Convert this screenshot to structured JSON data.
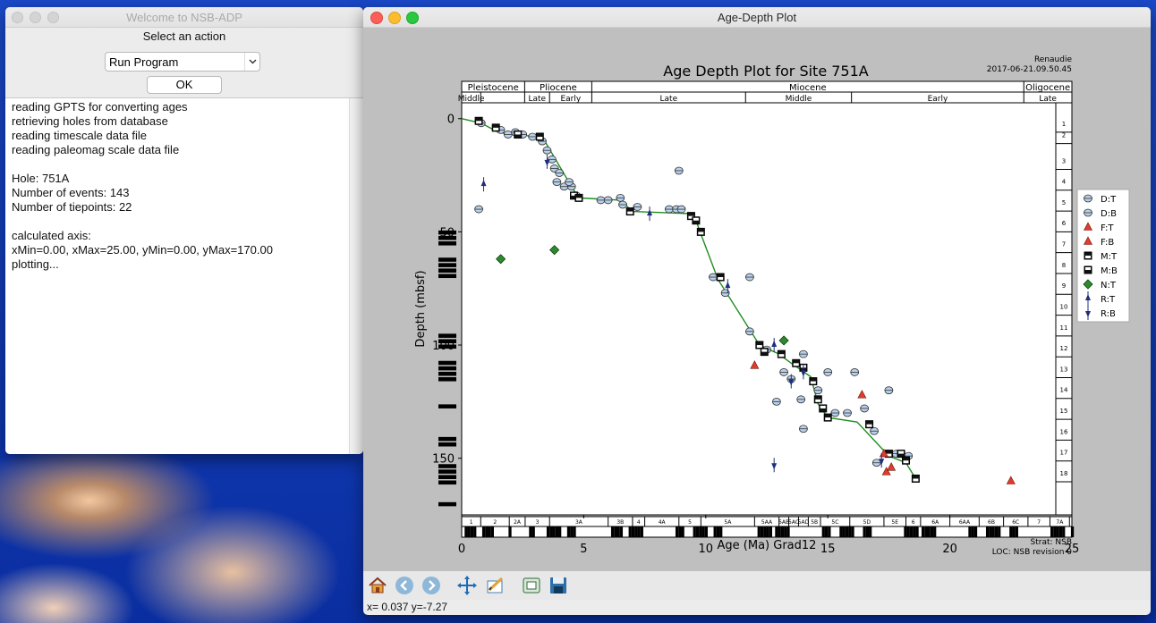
{
  "launcher": {
    "title": "Welcome to NSB-ADP",
    "prompt": "Select an action",
    "action_selected": "Run Program",
    "ok_label": "OK",
    "log_lines": [
      "reading GPTS for converting ages",
      "retrieving holes from database",
      "reading timescale data file",
      "reading paleomag scale data file",
      "",
      "Hole: 751A",
      "Number of events: 143",
      "Number of tiepoints: 22",
      "",
      "calculated axis:",
      "xMin=0.00, xMax=25.00, yMin=0.00, yMax=170.00",
      "plotting..."
    ]
  },
  "plot_window": {
    "title": "Age-Depth Plot",
    "status": "x= 0.037 y=-7.27",
    "toolbar": [
      "home-icon",
      "back-icon",
      "forward-icon",
      "pan-icon",
      "configure-icon",
      "subplots-icon",
      "save-icon"
    ]
  },
  "chart_data": {
    "type": "scatter",
    "title": "Age Depth Plot for Site 751A",
    "corner_text": [
      "Renaudie",
      "2017-06-21.09.50.45"
    ],
    "footer_text": [
      "Strat: NSB",
      "LOC: NSB revision 0"
    ],
    "xlabel": "Age (Ma) Grad12",
    "ylabel": "Depth (mbsf)",
    "xlim": [
      0,
      25
    ],
    "ylim": [
      175,
      -7
    ],
    "xticks": [
      0,
      5,
      10,
      15,
      20,
      25
    ],
    "yticks": [
      0,
      50,
      100,
      150
    ],
    "epochs": [
      {
        "name": "Pleistocene",
        "start": 0,
        "end": 2.58
      },
      {
        "name": "Pliocene",
        "start": 2.58,
        "end": 5.33
      },
      {
        "name": "Miocene",
        "start": 5.33,
        "end": 23.03
      },
      {
        "name": "Oligocene",
        "start": 23.03,
        "end": 25
      }
    ],
    "subepochs": [
      {
        "name": "Middle",
        "start": 0,
        "end": 0.78
      },
      {
        "name": "",
        "start": 0.78,
        "end": 2.58
      },
      {
        "name": "Late",
        "start": 2.58,
        "end": 3.6
      },
      {
        "name": "Early",
        "start": 3.6,
        "end": 5.33
      },
      {
        "name": "Late",
        "start": 5.33,
        "end": 11.63
      },
      {
        "name": "Middle",
        "start": 11.63,
        "end": 15.97
      },
      {
        "name": "Early",
        "start": 15.97,
        "end": 23.03
      },
      {
        "name": "Late",
        "start": 23.03,
        "end": 25
      }
    ],
    "chrons": [
      {
        "name": "1",
        "start": 0.78
      },
      {
        "name": "2",
        "start": 1.95
      },
      {
        "name": "2A",
        "start": 2.6
      },
      {
        "name": "3",
        "start": 3.6
      },
      {
        "name": "3A",
        "start": 6.0
      },
      {
        "name": "3B",
        "start": 7.0
      },
      {
        "name": "4",
        "start": 7.5
      },
      {
        "name": "4A",
        "start": 8.9
      },
      {
        "name": "5",
        "start": 9.8
      },
      {
        "name": "5A",
        "start": 12.0
      },
      {
        "name": "5AA",
        "start": 13.0
      },
      {
        "name": "5AB",
        "start": 13.4
      },
      {
        "name": "5AC",
        "start": 13.8
      },
      {
        "name": "5AD",
        "start": 14.2
      },
      {
        "name": "5B",
        "start": 14.7
      },
      {
        "name": "5C",
        "start": 15.9
      },
      {
        "name": "5D",
        "start": 17.3
      },
      {
        "name": "5E",
        "start": 18.2
      },
      {
        "name": "6",
        "start": 18.8
      },
      {
        "name": "6A",
        "start": 20.0
      },
      {
        "name": "6AA",
        "start": 21.2
      },
      {
        "name": "6B",
        "start": 22.2
      },
      {
        "name": "6C",
        "start": 23.2
      },
      {
        "name": "7",
        "start": 24.1
      },
      {
        "name": "7A",
        "start": 24.9
      }
    ],
    "legend_position": "right",
    "legend": [
      {
        "label": "D:T",
        "marker": "hexT"
      },
      {
        "label": "D:B",
        "marker": "hexB"
      },
      {
        "label": "F:T",
        "marker": "triT"
      },
      {
        "label": "F:B",
        "marker": "triB"
      },
      {
        "label": "M:T",
        "marker": "sqT"
      },
      {
        "label": "M:B",
        "marker": "sqB"
      },
      {
        "label": "N:T",
        "marker": "diaT"
      },
      {
        "label": "R:T",
        "marker": "arrT"
      },
      {
        "label": "R:B",
        "marker": "arrB"
      }
    ],
    "line_of_correlation": {
      "color": "#1f8c1f",
      "points": [
        [
          0,
          0
        ],
        [
          0.8,
          2
        ],
        [
          1.5,
          6
        ],
        [
          2.0,
          7
        ],
        [
          3.3,
          8
        ],
        [
          4.5,
          30
        ],
        [
          4.8,
          35
        ],
        [
          6.5,
          36
        ],
        [
          7.0,
          41
        ],
        [
          9.5,
          42
        ],
        [
          9.8,
          51
        ],
        [
          10.5,
          71
        ],
        [
          12.2,
          100
        ],
        [
          13.0,
          104
        ],
        [
          13.5,
          108
        ],
        [
          14.3,
          114
        ],
        [
          14.6,
          126
        ],
        [
          15.0,
          132
        ],
        [
          16.2,
          134
        ],
        [
          17.5,
          149
        ],
        [
          18.2,
          152
        ],
        [
          18.6,
          159
        ]
      ]
    },
    "points": [
      {
        "age": 0.8,
        "depth": 2,
        "m": "hexT"
      },
      {
        "age": 0.7,
        "depth": 40,
        "m": "hexT"
      },
      {
        "age": 1.6,
        "depth": 5,
        "m": "hexT"
      },
      {
        "age": 1.9,
        "depth": 7,
        "m": "hexB"
      },
      {
        "age": 2.2,
        "depth": 6,
        "m": "hexT"
      },
      {
        "age": 2.5,
        "depth": 7,
        "m": "hexT"
      },
      {
        "age": 2.9,
        "depth": 8,
        "m": "hexB"
      },
      {
        "age": 3.3,
        "depth": 10,
        "m": "hexT"
      },
      {
        "age": 3.5,
        "depth": 14,
        "m": "hexB"
      },
      {
        "age": 3.7,
        "depth": 18,
        "m": "hexT"
      },
      {
        "age": 3.8,
        "depth": 22,
        "m": "hexT"
      },
      {
        "age": 4.0,
        "depth": 24,
        "m": "hexT"
      },
      {
        "age": 4.2,
        "depth": 30,
        "m": "hexB"
      },
      {
        "age": 4.5,
        "depth": 30,
        "m": "hexT"
      },
      {
        "age": 4.7,
        "depth": 34,
        "m": "hexB"
      },
      {
        "age": 4.4,
        "depth": 28,
        "m": "hexT"
      },
      {
        "age": 3.9,
        "depth": 28,
        "m": "hexT"
      },
      {
        "age": 5.7,
        "depth": 36,
        "m": "hexT"
      },
      {
        "age": 6.0,
        "depth": 36,
        "m": "hexT"
      },
      {
        "age": 6.5,
        "depth": 35,
        "m": "hexB"
      },
      {
        "age": 6.6,
        "depth": 38,
        "m": "hexT"
      },
      {
        "age": 7.2,
        "depth": 39,
        "m": "hexT"
      },
      {
        "age": 8.5,
        "depth": 40,
        "m": "hexT"
      },
      {
        "age": 8.8,
        "depth": 40,
        "m": "hexT"
      },
      {
        "age": 9.0,
        "depth": 40,
        "m": "hexB"
      },
      {
        "age": 8.9,
        "depth": 23,
        "m": "hexT"
      },
      {
        "age": 10.3,
        "depth": 70,
        "m": "hexT"
      },
      {
        "age": 10.8,
        "depth": 77,
        "m": "hexT"
      },
      {
        "age": 11.8,
        "depth": 70,
        "m": "hexT"
      },
      {
        "age": 11.8,
        "depth": 94,
        "m": "hexT"
      },
      {
        "age": 12.5,
        "depth": 102,
        "m": "hexT"
      },
      {
        "age": 12.9,
        "depth": 125,
        "m": "hexT"
      },
      {
        "age": 13.2,
        "depth": 112,
        "m": "hexT"
      },
      {
        "age": 13.5,
        "depth": 115,
        "m": "hexT"
      },
      {
        "age": 14.0,
        "depth": 104,
        "m": "hexT"
      },
      {
        "age": 13.9,
        "depth": 124,
        "m": "hexT"
      },
      {
        "age": 14.0,
        "depth": 137,
        "m": "hexT"
      },
      {
        "age": 14.6,
        "depth": 120,
        "m": "hexT"
      },
      {
        "age": 15.0,
        "depth": 112,
        "m": "hexT"
      },
      {
        "age": 15.3,
        "depth": 130,
        "m": "hexT"
      },
      {
        "age": 15.8,
        "depth": 130,
        "m": "hexT"
      },
      {
        "age": 16.1,
        "depth": 112,
        "m": "hexT"
      },
      {
        "age": 16.5,
        "depth": 128,
        "m": "hexT"
      },
      {
        "age": 16.9,
        "depth": 138,
        "m": "hexT"
      },
      {
        "age": 17.5,
        "depth": 120,
        "m": "hexT"
      },
      {
        "age": 17.8,
        "depth": 148,
        "m": "hexT"
      },
      {
        "age": 18.3,
        "depth": 149,
        "m": "hexT"
      },
      {
        "age": 17.0,
        "depth": 152,
        "m": "hexT"
      },
      {
        "age": 0.7,
        "depth": 1,
        "m": "sqT"
      },
      {
        "age": 1.4,
        "depth": 4,
        "m": "sqT"
      },
      {
        "age": 2.3,
        "depth": 7,
        "m": "sqB"
      },
      {
        "age": 3.2,
        "depth": 8,
        "m": "sqT"
      },
      {
        "age": 4.6,
        "depth": 34,
        "m": "sqB"
      },
      {
        "age": 4.8,
        "depth": 35,
        "m": "sqT"
      },
      {
        "age": 6.9,
        "depth": 41,
        "m": "sqT"
      },
      {
        "age": 9.4,
        "depth": 43,
        "m": "sqT"
      },
      {
        "age": 9.6,
        "depth": 45,
        "m": "sqB"
      },
      {
        "age": 9.8,
        "depth": 50,
        "m": "sqT"
      },
      {
        "age": 10.6,
        "depth": 70,
        "m": "sqT"
      },
      {
        "age": 12.2,
        "depth": 100,
        "m": "sqT"
      },
      {
        "age": 12.4,
        "depth": 103,
        "m": "sqB"
      },
      {
        "age": 13.1,
        "depth": 104,
        "m": "sqT"
      },
      {
        "age": 13.7,
        "depth": 108,
        "m": "sqT"
      },
      {
        "age": 14.0,
        "depth": 110,
        "m": "sqB"
      },
      {
        "age": 14.4,
        "depth": 116,
        "m": "sqT"
      },
      {
        "age": 14.6,
        "depth": 124,
        "m": "sqT"
      },
      {
        "age": 14.8,
        "depth": 128,
        "m": "sqB"
      },
      {
        "age": 15.0,
        "depth": 132,
        "m": "sqT"
      },
      {
        "age": 16.7,
        "depth": 135,
        "m": "sqT"
      },
      {
        "age": 17.5,
        "depth": 148,
        "m": "sqT"
      },
      {
        "age": 18.0,
        "depth": 148,
        "m": "sqB"
      },
      {
        "age": 18.2,
        "depth": 151,
        "m": "sqT"
      },
      {
        "age": 18.6,
        "depth": 159,
        "m": "sqT"
      },
      {
        "age": 16.4,
        "depth": 122,
        "m": "triT"
      },
      {
        "age": 12.0,
        "depth": 109,
        "m": "triT"
      },
      {
        "age": 17.4,
        "depth": 156,
        "m": "triB"
      },
      {
        "age": 17.6,
        "depth": 154,
        "m": "triB"
      },
      {
        "age": 22.5,
        "depth": 160,
        "m": "triB"
      },
      {
        "age": 17.3,
        "depth": 148,
        "m": "triT"
      },
      {
        "age": 1.6,
        "depth": 62,
        "m": "diaT"
      },
      {
        "age": 3.8,
        "depth": 58,
        "m": "diaT"
      },
      {
        "age": 13.2,
        "depth": 98,
        "m": "diaT"
      },
      {
        "age": 0.9,
        "depth": 29,
        "m": "arrT"
      },
      {
        "age": 3.5,
        "depth": 19,
        "m": "arrB"
      },
      {
        "age": 7.7,
        "depth": 42,
        "m": "arrT"
      },
      {
        "age": 10.9,
        "depth": 74,
        "m": "arrT"
      },
      {
        "age": 12.8,
        "depth": 100,
        "m": "arrT"
      },
      {
        "age": 13.5,
        "depth": 116,
        "m": "arrB"
      },
      {
        "age": 12.8,
        "depth": 153,
        "m": "arrB"
      },
      {
        "age": 17.2,
        "depth": 151,
        "m": "arrB"
      },
      {
        "age": 14.0,
        "depth": 112,
        "m": "arrB"
      }
    ]
  }
}
